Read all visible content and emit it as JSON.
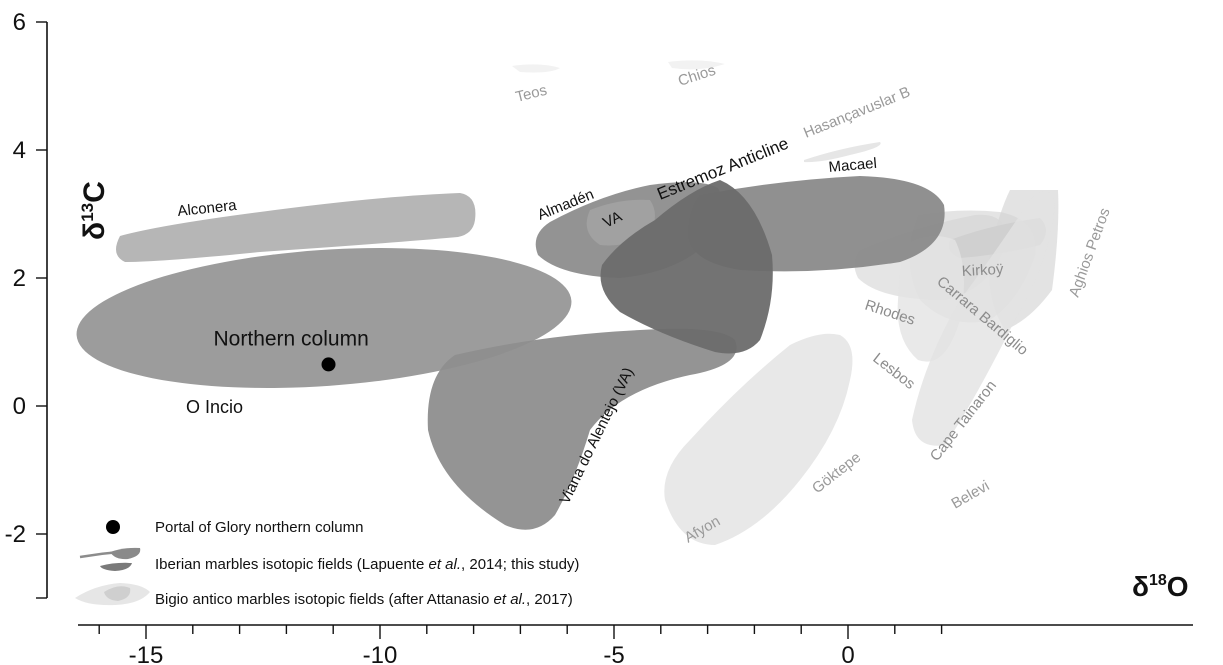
{
  "chart_data": {
    "type": "scatter",
    "title": "",
    "xlabel": "δ18O",
    "ylabel": "δ13C",
    "x_axis": {
      "label_base": "δ",
      "label_sup": "18",
      "label_tail": "O",
      "range": [
        -16,
        2.5
      ],
      "ticks": [
        -15,
        -10,
        -5,
        0
      ],
      "tick_labels": [
        "-15",
        "-10",
        "-5",
        "0"
      ]
    },
    "y_axis": {
      "label_base": "δ",
      "label_sup": "13",
      "label_tail": "C",
      "range": [
        -3,
        6
      ],
      "ticks": [
        -2,
        0,
        2,
        4,
        6
      ],
      "tick_labels": [
        "-2",
        "0",
        "2",
        "4",
        "6"
      ]
    },
    "points": [
      {
        "name": "Northern column",
        "x": -11.1,
        "y": 0.65,
        "label": "Northern column"
      }
    ],
    "iberian_fields": [
      {
        "name": "Alconera",
        "label": "Alconera",
        "color": "#b6b6b6"
      },
      {
        "name": "O Incio",
        "label": "O Incio",
        "color": "#9c9c9c"
      },
      {
        "name": "Viana do Alentejo (VA)",
        "label": "Viana do Alentejo (VA)",
        "color": "#8e8e8e"
      },
      {
        "name": "Almadén",
        "label": "Almadén",
        "color": "#8d8d8d"
      },
      {
        "name": "VA",
        "label": "VA",
        "color": "#9e9e9e"
      },
      {
        "name": "Estremoz Anticline",
        "label": "Estremoz Anticline",
        "color": "#707070"
      },
      {
        "name": "Macael",
        "label": "Macael",
        "color": "#8a8a8a"
      }
    ],
    "bigio_fields": [
      {
        "name": "Teos",
        "label": "Teos",
        "color": "#f2f2f2"
      },
      {
        "name": "Chios",
        "label": "Chios",
        "color": "#f2f2f2"
      },
      {
        "name": "Hasançavuslar B",
        "label": "Hasançavuslar B",
        "color": "#e6e6e6"
      },
      {
        "name": "Aghios Petros",
        "label": "Aghios Petros",
        "color": "#dedede"
      },
      {
        "name": "Kirkoÿ",
        "label": "Kirkoÿ",
        "color": "#c8c8c8"
      },
      {
        "name": "Carrara Bardiglio",
        "label": "Carrara Bardiglio",
        "color": "#cfcfcf"
      },
      {
        "name": "Rhodes",
        "label": "Rhodes",
        "color": "#e0e0e0"
      },
      {
        "name": "Lesbos",
        "label": "Lesbos",
        "color": "#e4e4e4"
      },
      {
        "name": "Cape Tainaron",
        "label": "Cape Tainaron",
        "color": "#e2e2e2"
      },
      {
        "name": "Göktepe",
        "label": "Göktepe",
        "color": "#e8e8e8"
      },
      {
        "name": "Afyon",
        "label": "Afyon",
        "color": "#ececec"
      },
      {
        "name": "Belevi",
        "label": "Belevi",
        "color": "#f0f0f0"
      }
    ],
    "legend": {
      "position": "bottom-left",
      "entries": [
        {
          "label": "Portal of Glory northern column"
        },
        {
          "label_pre": "Iberian marbles isotopic fields (Lapuente ",
          "label_em": "et al.",
          "label_post": ", 2014; this study)"
        },
        {
          "label_pre": "Bigio antico marbles isotopic fields (after Attanasio ",
          "label_em": "et al.",
          "label_post": ", 2017)"
        }
      ]
    },
    "grid": false
  }
}
